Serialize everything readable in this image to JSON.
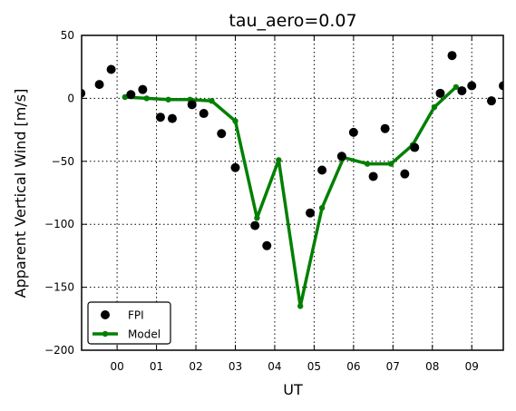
{
  "chart_data": {
    "type": "line",
    "title": "tau_aero=0.07",
    "xlabel": "UT",
    "ylabel": "Apparent Vertical Wind [m/s]",
    "xlim": [
      -0.9,
      9.8
    ],
    "ylim": [
      -200,
      50
    ],
    "x_ticks": [
      {
        "value": 0,
        "label": "00"
      },
      {
        "value": 1,
        "label": "01"
      },
      {
        "value": 2,
        "label": "02"
      },
      {
        "value": 3,
        "label": "03"
      },
      {
        "value": 4,
        "label": "04"
      },
      {
        "value": 5,
        "label": "05"
      },
      {
        "value": 6,
        "label": "06"
      },
      {
        "value": 7,
        "label": "07"
      },
      {
        "value": 8,
        "label": "08"
      },
      {
        "value": 9,
        "label": "09"
      }
    ],
    "y_ticks": [
      {
        "value": 50,
        "label": "50"
      },
      {
        "value": 0,
        "label": "0"
      },
      {
        "value": -50,
        "label": "−50"
      },
      {
        "value": -100,
        "label": "−100"
      },
      {
        "value": -150,
        "label": "−150"
      },
      {
        "value": -200,
        "label": "−200"
      }
    ],
    "grid": true,
    "legend_position": "lower-left",
    "series": [
      {
        "name": "FPI",
        "style": "markers",
        "color": "#000000",
        "points": [
          [
            -0.92,
            4
          ],
          [
            -0.45,
            11
          ],
          [
            -0.15,
            23
          ],
          [
            0.35,
            3
          ],
          [
            0.65,
            7
          ],
          [
            1.1,
            -15
          ],
          [
            1.4,
            -16
          ],
          [
            1.9,
            -5
          ],
          [
            2.2,
            -12
          ],
          [
            2.65,
            -28
          ],
          [
            3.0,
            -55
          ],
          [
            3.5,
            -101
          ],
          [
            3.8,
            -117
          ],
          [
            4.9,
            -91
          ],
          [
            5.2,
            -57
          ],
          [
            5.7,
            -46
          ],
          [
            6.0,
            -27
          ],
          [
            6.5,
            -62
          ],
          [
            6.8,
            -24
          ],
          [
            7.3,
            -60
          ],
          [
            7.55,
            -39
          ],
          [
            8.2,
            4
          ],
          [
            8.5,
            34
          ],
          [
            8.75,
            6
          ],
          [
            9.0,
            10
          ],
          [
            9.5,
            -2
          ],
          [
            9.8,
            10
          ]
        ]
      },
      {
        "name": "Model",
        "style": "line-markers",
        "color": "#008000",
        "points": [
          [
            0.2,
            1
          ],
          [
            0.75,
            0
          ],
          [
            1.3,
            -1
          ],
          [
            1.85,
            -1
          ],
          [
            2.4,
            -2
          ],
          [
            3.0,
            -18
          ],
          [
            3.55,
            -95
          ],
          [
            4.1,
            -49
          ],
          [
            4.65,
            -165
          ],
          [
            5.2,
            -87
          ],
          [
            5.75,
            -47
          ],
          [
            6.35,
            -52
          ],
          [
            6.95,
            -52
          ],
          [
            7.5,
            -37
          ],
          [
            8.05,
            -7
          ],
          [
            8.6,
            9
          ]
        ]
      }
    ]
  }
}
